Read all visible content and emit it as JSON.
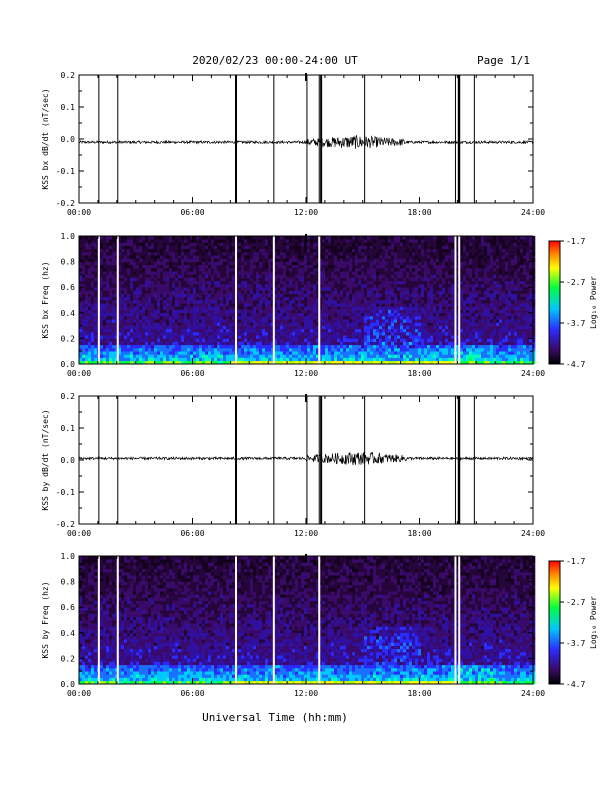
{
  "header": {
    "title": "2020/02/23  00:00-24:00 UT",
    "page": "Page 1/1"
  },
  "xlabel": "Universal Time (hh:mm)",
  "chart_data": [
    {
      "type": "line",
      "title": "",
      "ylabel": "KSS bx dB/dt (nT/sec)",
      "xlim": [
        0,
        24
      ],
      "ylim": [
        -0.2,
        0.2
      ],
      "x_ticks": [
        "00:00",
        "06:00",
        "12:00",
        "18:00",
        "24:00"
      ],
      "y_ticks": [
        "-0.2",
        "-0.1",
        "0.0",
        "0.1",
        "0.2"
      ],
      "series": [
        {
          "baseline": -0.01,
          "activity_hours": [
            [
              12.0,
              17.3
            ]
          ]
        }
      ],
      "spikes_hours": [
        1.05,
        2.05,
        8.3,
        10.3,
        12.05,
        12.7,
        12.8,
        15.1,
        19.9,
        20.05,
        20.1,
        20.9
      ]
    },
    {
      "type": "heatmap",
      "ylabel": "KSS bx Freq (hz)",
      "xlim": [
        0,
        24
      ],
      "ylim": [
        0,
        1.0
      ],
      "x_ticks": [
        "00:00",
        "06:00",
        "12:00",
        "18:00",
        "24:00"
      ],
      "y_ticks": [
        "0.0",
        "0.2",
        "0.4",
        "0.6",
        "0.8",
        "1.0"
      ],
      "colorbar": {
        "label": "Log₁₀ Power",
        "ticks": [
          "-1.7",
          "-2.7",
          "-3.7",
          "-4.7"
        ],
        "range": [
          -4.7,
          -1.7
        ]
      },
      "gaps_hours": [
        1.05,
        2.05,
        8.3,
        10.3,
        12.7,
        19.9,
        20.1
      ]
    },
    {
      "type": "line",
      "ylabel": "KSS by dB/dt (nT/sec)",
      "xlim": [
        0,
        24
      ],
      "ylim": [
        -0.2,
        0.2
      ],
      "x_ticks": [
        "00:00",
        "06:00",
        "12:00",
        "18:00",
        "24:00"
      ],
      "y_ticks": [
        "-0.2",
        "-0.1",
        "0.0",
        "0.1",
        "0.2"
      ],
      "series": [
        {
          "baseline": 0.005,
          "activity_hours": [
            [
              12.0,
              17.3
            ]
          ]
        }
      ],
      "spikes_hours": [
        1.05,
        2.05,
        8.3,
        10.3,
        12.05,
        12.7,
        12.8,
        15.1,
        19.9,
        20.05,
        20.1,
        20.9
      ]
    },
    {
      "type": "heatmap",
      "ylabel": "KSS by Freq (hz)",
      "xlim": [
        0,
        24
      ],
      "ylim": [
        0,
        1.0
      ],
      "x_ticks": [
        "00:00",
        "06:00",
        "12:00",
        "18:00",
        "24:00"
      ],
      "y_ticks": [
        "0.0",
        "0.2",
        "0.4",
        "0.6",
        "0.8",
        "1.0"
      ],
      "colorbar": {
        "label": "Log₁₀ Power",
        "ticks": [
          "-1.7",
          "-2.7",
          "-3.7",
          "-4.7"
        ],
        "range": [
          -4.7,
          -1.7
        ]
      },
      "gaps_hours": [
        1.05,
        2.05,
        8.3,
        10.3,
        12.7,
        19.9,
        20.1
      ]
    }
  ]
}
